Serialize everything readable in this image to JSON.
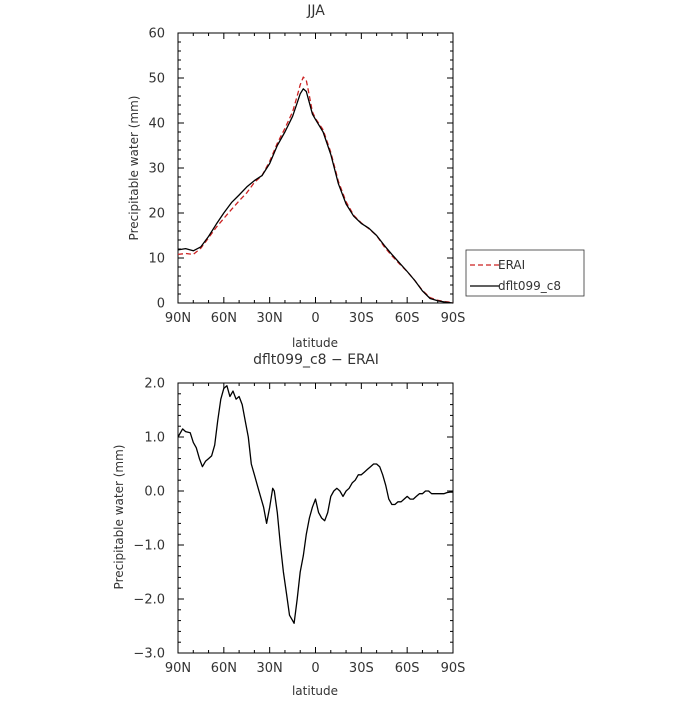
{
  "chart_data": [
    {
      "type": "line",
      "title": "JJA",
      "xlabel": "latitude",
      "ylabel": "Precipitable water (mm)",
      "xlim": [
        90,
        -90
      ],
      "ylim": [
        0,
        60
      ],
      "xticks": [
        90,
        60,
        30,
        0,
        -30,
        -60,
        -90
      ],
      "xtick_labels": [
        "90N",
        "60N",
        "30N",
        "0",
        "30S",
        "60S",
        "90S"
      ],
      "yticks": [
        0,
        10,
        20,
        30,
        40,
        50,
        60
      ],
      "ytick_labels": [
        "0",
        "10",
        "20",
        "30",
        "40",
        "50",
        "60"
      ],
      "legend_position": "right-outside",
      "series": [
        {
          "name": "ERAI",
          "color": "#cc2222",
          "dash": "dashed",
          "points": [
            [
              90,
              10.8
            ],
            [
              85,
              11.0
            ],
            [
              80,
              10.8
            ],
            [
              75,
              12.2
            ],
            [
              70,
              14.5
            ],
            [
              65,
              16.8
            ],
            [
              60,
              18.8
            ],
            [
              55,
              20.8
            ],
            [
              50,
              22.7
            ],
            [
              45,
              24.5
            ],
            [
              40,
              26.8
            ],
            [
              35,
              28.3
            ],
            [
              30,
              31.5
            ],
            [
              25,
              35.5
            ],
            [
              20,
              38.8
            ],
            [
              15,
              42.5
            ],
            [
              12,
              46.0
            ],
            [
              10,
              48.5
            ],
            [
              8,
              50.2
            ],
            [
              6,
              49.5
            ],
            [
              4,
              46.0
            ],
            [
              2,
              42.5
            ],
            [
              0,
              41.0
            ],
            [
              -5,
              38.5
            ],
            [
              -10,
              33.5
            ],
            [
              -15,
              27.0
            ],
            [
              -20,
              22.5
            ],
            [
              -25,
              19.5
            ],
            [
              -30,
              17.8
            ],
            [
              -35,
              16.5
            ],
            [
              -40,
              15.0
            ],
            [
              -45,
              12.5
            ],
            [
              -50,
              10.5
            ],
            [
              -55,
              8.7
            ],
            [
              -60,
              7.0
            ],
            [
              -65,
              5.0
            ],
            [
              -70,
              2.8
            ],
            [
              -75,
              1.2
            ],
            [
              -80,
              0.6
            ],
            [
              -85,
              0.3
            ],
            [
              -90,
              0.1
            ]
          ]
        },
        {
          "name": "dflt099_c8",
          "color": "#000000",
          "dash": "solid",
          "points": [
            [
              90,
              11.8
            ],
            [
              85,
              12.1
            ],
            [
              80,
              11.6
            ],
            [
              75,
              12.5
            ],
            [
              70,
              14.8
            ],
            [
              65,
              17.5
            ],
            [
              60,
              20.0
            ],
            [
              55,
              22.3
            ],
            [
              50,
              24.0
            ],
            [
              45,
              25.8
            ],
            [
              40,
              27.2
            ],
            [
              35,
              28.3
            ],
            [
              30,
              31.0
            ],
            [
              25,
              35.0
            ],
            [
              20,
              38.0
            ],
            [
              15,
              41.5
            ],
            [
              12,
              44.5
            ],
            [
              10,
              46.5
            ],
            [
              8,
              47.6
            ],
            [
              6,
              47.0
            ],
            [
              4,
              44.5
            ],
            [
              2,
              42.0
            ],
            [
              0,
              40.8
            ],
            [
              -5,
              38.0
            ],
            [
              -10,
              33.0
            ],
            [
              -15,
              26.5
            ],
            [
              -20,
              22.0
            ],
            [
              -25,
              19.3
            ],
            [
              -30,
              17.7
            ],
            [
              -35,
              16.6
            ],
            [
              -40,
              15.0
            ],
            [
              -45,
              12.8
            ],
            [
              -50,
              10.8
            ],
            [
              -55,
              8.9
            ],
            [
              -60,
              7.0
            ],
            [
              -65,
              5.0
            ],
            [
              -70,
              2.7
            ],
            [
              -75,
              1.0
            ],
            [
              -80,
              0.5
            ],
            [
              -85,
              0.2
            ],
            [
              -90,
              0.0
            ]
          ]
        }
      ]
    },
    {
      "type": "line",
      "title": "dflt099_c8 − ERAI",
      "xlabel": "latitude",
      "ylabel": "Precipitable water (mm)",
      "xlim": [
        90,
        -90
      ],
      "ylim": [
        -3,
        2
      ],
      "xticks": [
        90,
        60,
        30,
        0,
        -30,
        -60,
        -90
      ],
      "xtick_labels": [
        "90N",
        "60N",
        "30N",
        "0",
        "30S",
        "60S",
        "90S"
      ],
      "yticks": [
        -3,
        -2,
        -1,
        0,
        1,
        2
      ],
      "ytick_labels": [
        "−3.0",
        "−2.0",
        "−1.0",
        "0.0",
        "1.0",
        "2.0"
      ],
      "series": [
        {
          "name": "dflt099_c8 − ERAI",
          "color": "#000000",
          "dash": "solid",
          "points": [
            [
              90,
              1.0
            ],
            [
              87,
              1.15
            ],
            [
              85,
              1.1
            ],
            [
              82,
              1.08
            ],
            [
              80,
              0.9
            ],
            [
              78,
              0.8
            ],
            [
              76,
              0.6
            ],
            [
              74,
              0.45
            ],
            [
              72,
              0.55
            ],
            [
              70,
              0.6
            ],
            [
              68,
              0.65
            ],
            [
              66,
              0.85
            ],
            [
              64,
              1.3
            ],
            [
              62,
              1.7
            ],
            [
              60,
              1.9
            ],
            [
              58,
              1.95
            ],
            [
              56,
              1.75
            ],
            [
              54,
              1.85
            ],
            [
              52,
              1.7
            ],
            [
              50,
              1.75
            ],
            [
              48,
              1.6
            ],
            [
              46,
              1.3
            ],
            [
              44,
              1.0
            ],
            [
              42,
              0.5
            ],
            [
              40,
              0.3
            ],
            [
              38,
              0.1
            ],
            [
              36,
              -0.1
            ],
            [
              34,
              -0.3
            ],
            [
              32,
              -0.6
            ],
            [
              30,
              -0.3
            ],
            [
              28,
              0.05
            ],
            [
              27,
              0.0
            ],
            [
              25,
              -0.4
            ],
            [
              23,
              -1.0
            ],
            [
              21,
              -1.5
            ],
            [
              19,
              -1.9
            ],
            [
              17,
              -2.3
            ],
            [
              15,
              -2.4
            ],
            [
              14,
              -2.45
            ],
            [
              12,
              -2.0
            ],
            [
              10,
              -1.5
            ],
            [
              8,
              -1.2
            ],
            [
              6,
              -0.8
            ],
            [
              4,
              -0.5
            ],
            [
              2,
              -0.3
            ],
            [
              0,
              -0.15
            ],
            [
              -2,
              -0.4
            ],
            [
              -4,
              -0.5
            ],
            [
              -6,
              -0.55
            ],
            [
              -8,
              -0.4
            ],
            [
              -10,
              -0.1
            ],
            [
              -12,
              0.0
            ],
            [
              -14,
              0.05
            ],
            [
              -16,
              0.0
            ],
            [
              -18,
              -0.1
            ],
            [
              -20,
              0.0
            ],
            [
              -22,
              0.05
            ],
            [
              -24,
              0.15
            ],
            [
              -26,
              0.2
            ],
            [
              -28,
              0.3
            ],
            [
              -30,
              0.3
            ],
            [
              -32,
              0.35
            ],
            [
              -34,
              0.4
            ],
            [
              -36,
              0.45
            ],
            [
              -38,
              0.5
            ],
            [
              -40,
              0.5
            ],
            [
              -42,
              0.45
            ],
            [
              -44,
              0.3
            ],
            [
              -46,
              0.1
            ],
            [
              -48,
              -0.15
            ],
            [
              -50,
              -0.25
            ],
            [
              -52,
              -0.25
            ],
            [
              -54,
              -0.2
            ],
            [
              -56,
              -0.2
            ],
            [
              -58,
              -0.15
            ],
            [
              -60,
              -0.1
            ],
            [
              -62,
              -0.15
            ],
            [
              -64,
              -0.15
            ],
            [
              -66,
              -0.1
            ],
            [
              -68,
              -0.05
            ],
            [
              -70,
              -0.05
            ],
            [
              -72,
              0.0
            ],
            [
              -74,
              0.0
            ],
            [
              -76,
              -0.05
            ],
            [
              -78,
              -0.05
            ],
            [
              -80,
              -0.05
            ],
            [
              -82,
              -0.05
            ],
            [
              -84,
              -0.05
            ],
            [
              -86,
              -0.03
            ],
            [
              -88,
              -0.02
            ],
            [
              -90,
              -0.02
            ]
          ]
        }
      ]
    }
  ]
}
